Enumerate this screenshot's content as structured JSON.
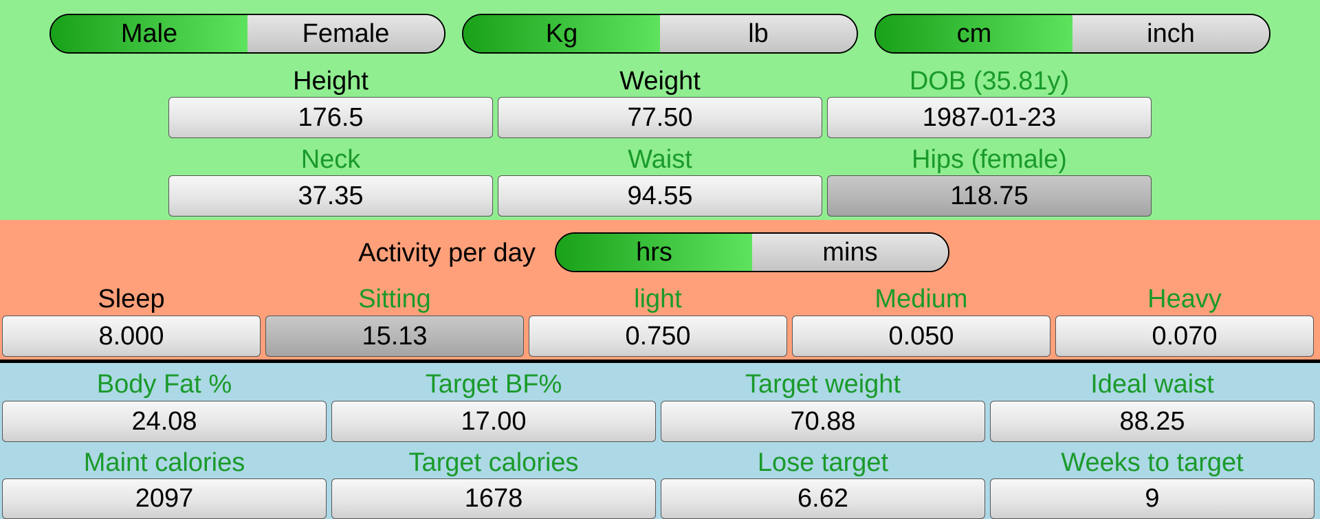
{
  "toggles": {
    "sex": {
      "left": "Male",
      "right": "Female",
      "selected": "left"
    },
    "weight_unit": {
      "left": "Kg",
      "right": "lb",
      "selected": "left"
    },
    "length_unit": {
      "left": "cm",
      "right": "inch",
      "selected": "left"
    },
    "activity_unit": {
      "left": "hrs",
      "right": "mins",
      "selected": "left"
    }
  },
  "body": {
    "height": {
      "label": "Height",
      "value": "176.5"
    },
    "weight": {
      "label": "Weight",
      "value": "77.50"
    },
    "dob": {
      "label": "DOB (35.81y)",
      "value": "1987-01-23"
    },
    "neck": {
      "label": "Neck",
      "value": "37.35"
    },
    "waist": {
      "label": "Waist",
      "value": "94.55"
    },
    "hips": {
      "label": "Hips (female)",
      "value": "118.75"
    }
  },
  "activity": {
    "title": "Activity per day",
    "sleep": {
      "label": "Sleep",
      "value": "8.000"
    },
    "sitting": {
      "label": "Sitting",
      "value": "15.13"
    },
    "light": {
      "label": "light",
      "value": "0.750"
    },
    "medium": {
      "label": "Medium",
      "value": "0.050"
    },
    "heavy": {
      "label": "Heavy",
      "value": "0.070"
    }
  },
  "results": {
    "body_fat": {
      "label": "Body Fat %",
      "value": "24.08"
    },
    "target_bf": {
      "label": "Target BF%",
      "value": "17.00"
    },
    "target_weight": {
      "label": "Target weight",
      "value": "70.88"
    },
    "ideal_waist": {
      "label": "Ideal waist",
      "value": "88.25"
    },
    "maint_calories": {
      "label": "Maint calories",
      "value": "2097"
    },
    "target_calories": {
      "label": "Target calories",
      "value": "1678"
    },
    "lose_target": {
      "label": "Lose target",
      "value": "6.62"
    },
    "weeks_to_target": {
      "label": "Weeks to target",
      "value": "9"
    }
  },
  "colors": {
    "top_section": "#90ee90",
    "activity_section": "#ffa07a",
    "results_section": "#add8e6",
    "label_green": "#1a9a2a",
    "toggle_on": "#1aa11a"
  }
}
